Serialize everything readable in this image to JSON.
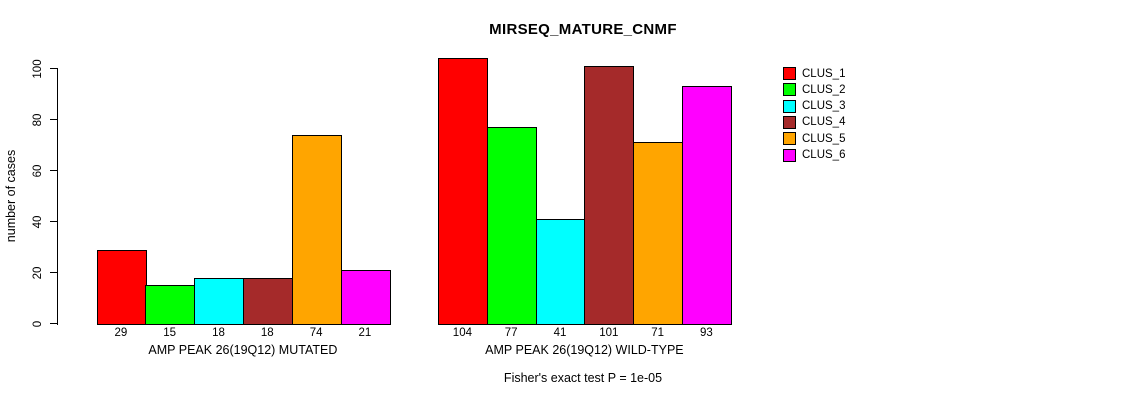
{
  "chart_data": {
    "type": "bar",
    "title": "MIRSEQ_MATURE_CNMF",
    "ylabel": "number of cases",
    "ylim": [
      0,
      100
    ],
    "yticks": [
      0,
      20,
      40,
      60,
      80,
      100
    ],
    "grid": false,
    "legend_position": "right",
    "clusters": [
      "CLUS_1",
      "CLUS_2",
      "CLUS_3",
      "CLUS_4",
      "CLUS_5",
      "CLUS_6"
    ],
    "colors": [
      "#ff0000",
      "#00ff00",
      "#00ffff",
      "#a52a2a",
      "#ffa500",
      "#ff00ff"
    ],
    "groups": [
      {
        "label": "AMP PEAK 26(19Q12) MUTATED",
        "values": [
          29,
          15,
          18,
          18,
          74,
          21
        ]
      },
      {
        "label": "AMP PEAK 26(19Q12) WILD-TYPE",
        "values": [
          104,
          77,
          41,
          101,
          71,
          93
        ]
      }
    ],
    "annotation": "Fisher's exact test P = 1e-05"
  }
}
